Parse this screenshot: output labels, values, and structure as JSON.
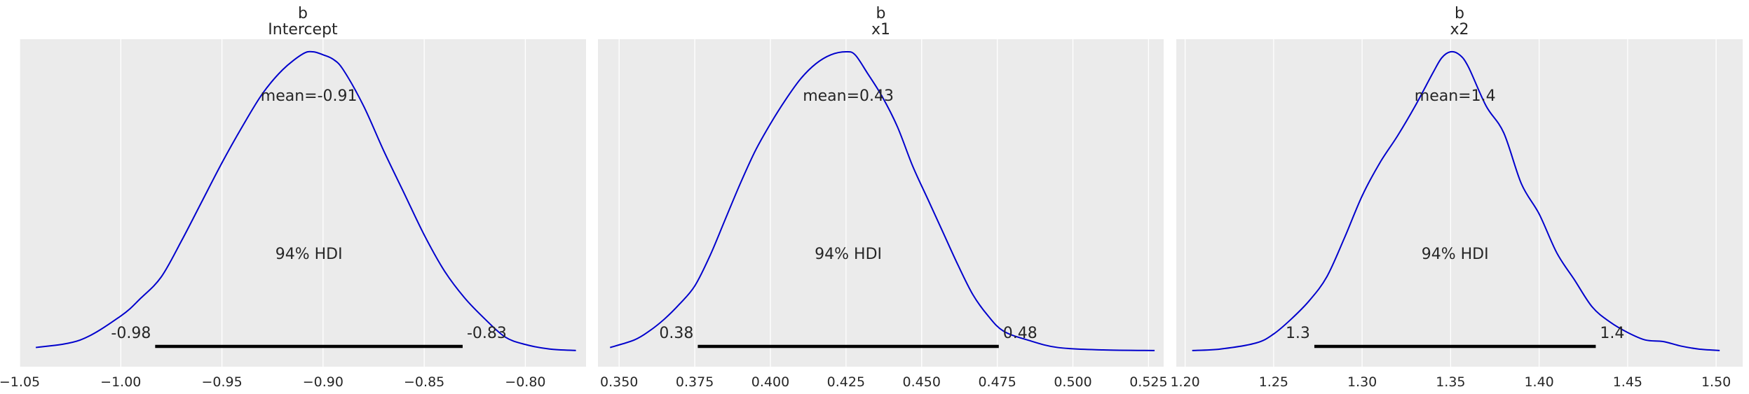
{
  "chart_data": [
    {
      "type": "area",
      "title": [
        "b",
        "Intercept"
      ],
      "xticks": [
        -1.05,
        -1.0,
        -0.95,
        -0.9,
        -0.85,
        -0.8
      ],
      "xtick_labels": [
        "−1.05",
        "−1.00",
        "−0.95",
        "−0.90",
        "−0.85",
        "−0.80"
      ],
      "xlim": [
        -1.05,
        -0.77
      ],
      "grid": true,
      "mean_label": "mean=-0.91",
      "hdi_label": "94% HDI",
      "hdi": [
        -0.983,
        -0.831
      ],
      "hdi_labels": [
        "-0.98",
        "-0.83"
      ],
      "line_color": "#0000cc",
      "density": {
        "x": [
          -1.042,
          -1.02,
          -1.0,
          -0.99,
          -0.98,
          -0.97,
          -0.96,
          -0.95,
          -0.94,
          -0.93,
          -0.92,
          -0.91,
          -0.905,
          -0.9,
          -0.895,
          -0.89,
          -0.88,
          -0.87,
          -0.86,
          -0.85,
          -0.84,
          -0.83,
          -0.82,
          -0.81,
          -0.8,
          -0.788,
          -0.775
        ],
        "y": [
          0.015,
          0.04,
          0.12,
          0.18,
          0.25,
          0.37,
          0.5,
          0.63,
          0.75,
          0.86,
          0.94,
          0.993,
          1.0,
          0.99,
          0.975,
          0.94,
          0.82,
          0.67,
          0.53,
          0.39,
          0.27,
          0.18,
          0.11,
          0.05,
          0.025,
          0.01,
          0.005
        ]
      }
    },
    {
      "type": "area",
      "title": [
        "b",
        "x1"
      ],
      "xticks": [
        0.35,
        0.375,
        0.4,
        0.425,
        0.45,
        0.475,
        0.5,
        0.525
      ],
      "xtick_labels": [
        "0.350",
        "0.375",
        "0.400",
        "0.425",
        "0.450",
        "0.475",
        "0.500",
        "0.525"
      ],
      "xlim": [
        0.343,
        0.53
      ],
      "grid": true,
      "mean_label": "mean=0.43",
      "hdi_label": "94% HDI",
      "hdi": [
        0.376,
        0.4755
      ],
      "hdi_labels": [
        "0.38",
        "0.48"
      ],
      "line_color": "#0000cc",
      "density": {
        "x": [
          0.347,
          0.355,
          0.36,
          0.365,
          0.37,
          0.375,
          0.38,
          0.385,
          0.39,
          0.395,
          0.4,
          0.405,
          0.41,
          0.415,
          0.42,
          0.425,
          0.428,
          0.432,
          0.437,
          0.442,
          0.447,
          0.452,
          0.457,
          0.462,
          0.467,
          0.472,
          0.477,
          0.485,
          0.495,
          0.51,
          0.527
        ],
        "y": [
          0.015,
          0.04,
          0.07,
          0.11,
          0.16,
          0.22,
          0.32,
          0.44,
          0.56,
          0.67,
          0.76,
          0.84,
          0.91,
          0.96,
          0.99,
          1.0,
          0.99,
          0.93,
          0.85,
          0.75,
          0.62,
          0.51,
          0.4,
          0.29,
          0.19,
          0.12,
          0.07,
          0.04,
          0.015,
          0.007,
          0.005
        ]
      }
    },
    {
      "type": "area",
      "title": [
        "b",
        "x2"
      ],
      "xticks": [
        1.2,
        1.25,
        1.3,
        1.35,
        1.4,
        1.45,
        1.5
      ],
      "xtick_labels": [
        "1.20",
        "1.25",
        "1.30",
        "1.35",
        "1.40",
        "1.45",
        "1.50"
      ],
      "xlim": [
        1.195,
        1.515
      ],
      "grid": true,
      "mean_label": "mean=1.4",
      "hdi_label": "94% HDI",
      "hdi": [
        1.273,
        1.432
      ],
      "hdi_labels": [
        "1.3",
        "1.4"
      ],
      "line_color": "#0000cc",
      "density": {
        "x": [
          1.204,
          1.22,
          1.24,
          1.25,
          1.26,
          1.27,
          1.28,
          1.29,
          1.3,
          1.31,
          1.32,
          1.33,
          1.34,
          1.345,
          1.35,
          1.355,
          1.36,
          1.37,
          1.38,
          1.39,
          1.4,
          1.41,
          1.42,
          1.43,
          1.44,
          1.45,
          1.46,
          1.47,
          1.48,
          1.49,
          1.502
        ],
        "y": [
          0.005,
          0.01,
          0.03,
          0.06,
          0.11,
          0.17,
          0.25,
          0.38,
          0.52,
          0.63,
          0.72,
          0.82,
          0.93,
          0.98,
          1.0,
          0.99,
          0.95,
          0.82,
          0.73,
          0.56,
          0.46,
          0.33,
          0.24,
          0.15,
          0.1,
          0.065,
          0.04,
          0.035,
          0.02,
          0.01,
          0.005
        ]
      }
    }
  ]
}
